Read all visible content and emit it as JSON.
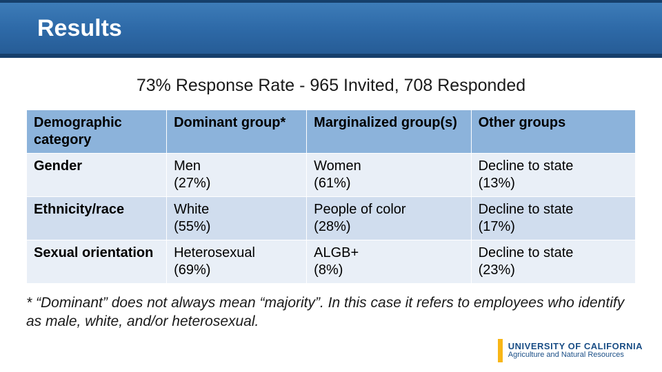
{
  "header": {
    "title": "Results"
  },
  "subhead": "73% Response Rate - 965 Invited, 708 Responded",
  "colors": {
    "header_row_bg": "#8cb3db",
    "row_odd_bg": "#e9eff7",
    "row_even_bg": "#d0ddee",
    "title_bar_top_border": "#163f6b",
    "title_bar_gradient_top": "#3d7cb8",
    "title_bar_gradient_bottom": "#265c96",
    "accent_gold": "#f8b617",
    "brand_blue": "#1a4e86"
  },
  "table": {
    "columns": [
      "Demographic category",
      "Dominant group*",
      "Marginalized group(s)",
      "Other groups"
    ],
    "rows": [
      {
        "c0": "Gender",
        "c1": "Men\n(27%)",
        "c2": "Women\n(61%)",
        "c3": "Decline to state\n(13%)"
      },
      {
        "c0": "Ethnicity/race",
        "c1": "White\n(55%)",
        "c2": "People of color\n(28%)",
        "c3": "Decline to state\n(17%)"
      },
      {
        "c0": "Sexual orientation",
        "c1": "Heterosexual\n(69%)",
        "c2": "ALGB+\n(8%)",
        "c3": "Decline to state\n(23%)"
      }
    ]
  },
  "footnote": "* “Dominant” does not always mean “majority”. In this case it refers to employees who identify as male, white, and/or heterosexual.",
  "footer": {
    "line1": "UNIVERSITY OF CALIFORNIA",
    "line2": "Agriculture and Natural Resources"
  }
}
